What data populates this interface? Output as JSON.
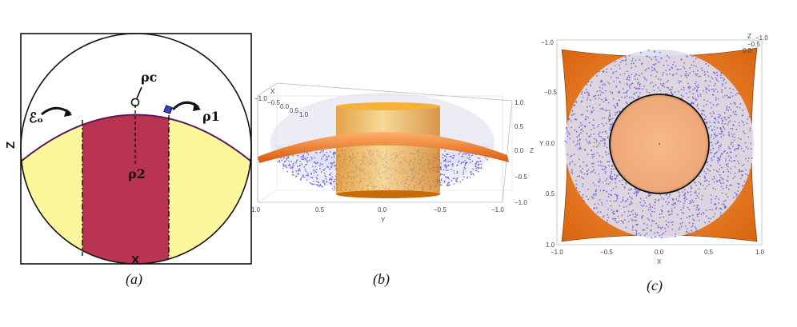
{
  "panels": {
    "a": {
      "caption": "(a)",
      "x_label": "X",
      "z_label": "Z",
      "epsilon_label": "ℰₒ",
      "rho_c_label": "ρc",
      "rho_1_label": "ρ1",
      "rho_2_label": "ρ2"
    },
    "b": {
      "caption": "(b)",
      "x_axis_title": "X",
      "y_axis_title": "Y",
      "z_axis_title": "Z",
      "y_ticks": [
        "1.0",
        "0.5",
        "0.0",
        "−0.5",
        "−1.0"
      ],
      "z_ticks": [
        "1.0",
        "0.5",
        "0.0",
        "−0.5",
        "−1.0"
      ],
      "x_ticks": [
        "−1.0",
        "−0.5",
        "0.0",
        "0.5",
        "1.0"
      ]
    },
    "c": {
      "caption": "(c)",
      "x_axis_title": "X",
      "y_axis_title": "Y",
      "z_axis_title": "Z",
      "x_ticks": [
        "−1.0",
        "−0.5",
        "0.0",
        "0.5",
        "1.0"
      ],
      "y_ticks": [
        "−1.0",
        "−0.5",
        "0.0",
        "0.5",
        "1.0"
      ],
      "z_ticks": [
        "−1.0",
        "−0.5",
        "0.0"
      ]
    }
  },
  "colors": {
    "crimson": "#b83450",
    "pale_yellow": "#fbf79a",
    "purple_outline": "#5a1a5e",
    "orange": "#e9731a",
    "peach": "#f4b987",
    "dot_blue": "#5a5ad8"
  }
}
